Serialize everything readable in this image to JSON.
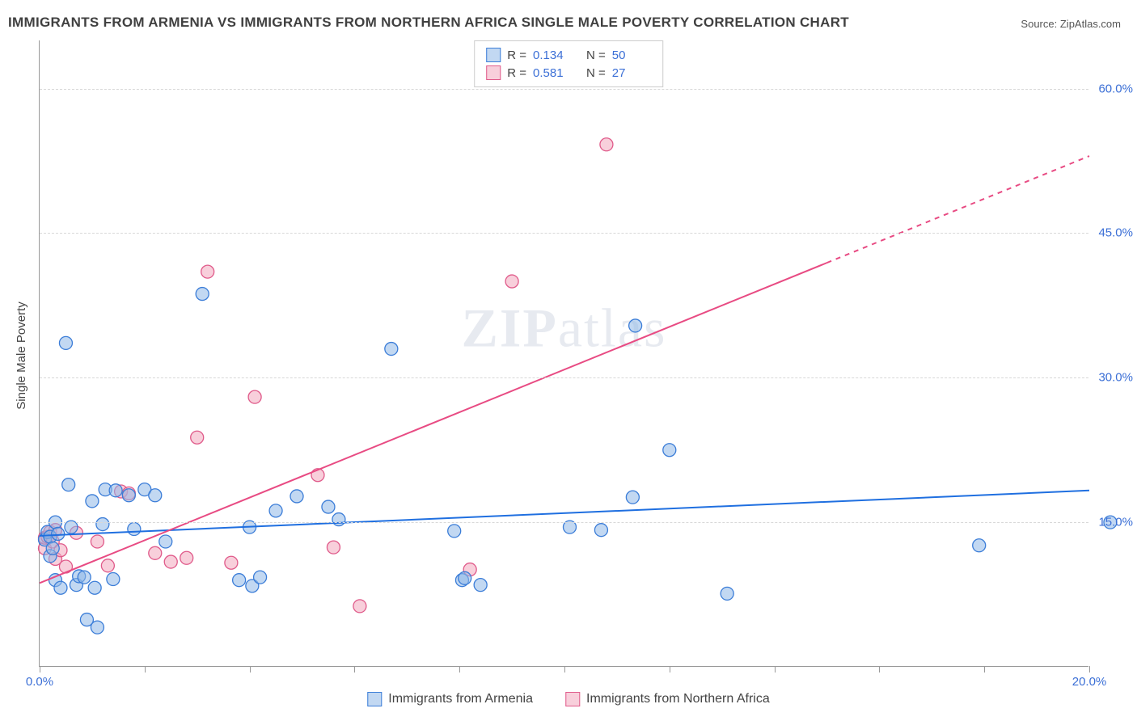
{
  "title": "IMMIGRANTS FROM ARMENIA VS IMMIGRANTS FROM NORTHERN AFRICA SINGLE MALE POVERTY CORRELATION CHART",
  "source_label": "Source:",
  "source_value": "ZipAtlas.com",
  "y_axis_label": "Single Male Poverty",
  "watermark": "ZIPatlas",
  "chart": {
    "type": "scatter",
    "xlim": [
      0,
      20
    ],
    "ylim": [
      0,
      65
    ],
    "x_ticks": [
      0,
      2,
      4,
      6,
      8,
      10,
      12,
      14,
      16,
      18,
      20
    ],
    "x_tick_labels": {
      "0": "0.0%",
      "20": "20.0%"
    },
    "y_ticks": [
      15,
      30,
      45,
      60
    ],
    "y_tick_labels": {
      "15": "15.0%",
      "30": "30.0%",
      "45": "45.0%",
      "60": "60.0%"
    },
    "grid_color": "#d8d8d8",
    "background_color": "#ffffff",
    "marker_radius": 8,
    "marker_stroke_width": 1.3,
    "line_width": 2,
    "series": [
      {
        "name": "Immigrants from Armenia",
        "label": "Immigrants from Armenia",
        "fill_color": "#8fb8e8",
        "fill_opacity": 0.55,
        "stroke_color": "#3b7dd8",
        "line_color": "#1f6fe0",
        "R": "0.134",
        "N": "50",
        "trend": {
          "x1": 0,
          "y1": 13.6,
          "x2": 20,
          "y2": 18.3,
          "dash_from_x": null
        },
        "points": [
          [
            0.1,
            13.2
          ],
          [
            0.15,
            14.0
          ],
          [
            0.2,
            11.5
          ],
          [
            0.2,
            13.5
          ],
          [
            0.25,
            12.3
          ],
          [
            0.3,
            9.0
          ],
          [
            0.3,
            15.0
          ],
          [
            0.35,
            13.8
          ],
          [
            0.4,
            8.2
          ],
          [
            0.5,
            33.6
          ],
          [
            0.55,
            18.9
          ],
          [
            0.6,
            14.5
          ],
          [
            0.7,
            8.5
          ],
          [
            0.75,
            9.4
          ],
          [
            0.85,
            9.3
          ],
          [
            0.9,
            4.9
          ],
          [
            1.0,
            17.2
          ],
          [
            1.05,
            8.2
          ],
          [
            1.1,
            4.1
          ],
          [
            1.2,
            14.8
          ],
          [
            1.25,
            18.4
          ],
          [
            1.4,
            9.1
          ],
          [
            1.45,
            18.3
          ],
          [
            1.7,
            17.8
          ],
          [
            1.8,
            14.3
          ],
          [
            2.0,
            18.4
          ],
          [
            2.2,
            17.8
          ],
          [
            2.4,
            13.0
          ],
          [
            3.1,
            38.7
          ],
          [
            3.8,
            9.0
          ],
          [
            4.0,
            14.5
          ],
          [
            4.05,
            8.4
          ],
          [
            4.2,
            9.3
          ],
          [
            4.5,
            16.2
          ],
          [
            4.9,
            17.7
          ],
          [
            5.5,
            16.6
          ],
          [
            5.7,
            15.3
          ],
          [
            6.7,
            33.0
          ],
          [
            7.9,
            14.1
          ],
          [
            8.05,
            9.0
          ],
          [
            8.1,
            9.2
          ],
          [
            8.4,
            8.5
          ],
          [
            10.1,
            14.5
          ],
          [
            10.7,
            14.2
          ],
          [
            11.3,
            17.6
          ],
          [
            11.35,
            35.4
          ],
          [
            12.0,
            22.5
          ],
          [
            13.1,
            7.6
          ],
          [
            17.9,
            12.6
          ],
          [
            20.4,
            15.0
          ]
        ]
      },
      {
        "name": "Immigrants from Northern Africa",
        "label": "Immigrants from Northern Africa",
        "fill_color": "#f3a7bd",
        "fill_opacity": 0.55,
        "stroke_color": "#e05a8a",
        "line_color": "#e84b83",
        "R": "0.581",
        "N": "27",
        "trend": {
          "x1": 0,
          "y1": 8.7,
          "x2": 20,
          "y2": 53.0,
          "dash_from_x": 15
        },
        "points": [
          [
            0.1,
            12.3
          ],
          [
            0.1,
            13.4
          ],
          [
            0.15,
            13.5
          ],
          [
            0.2,
            14.0
          ],
          [
            0.25,
            13.0
          ],
          [
            0.3,
            11.2
          ],
          [
            0.3,
            14.2
          ],
          [
            0.4,
            12.1
          ],
          [
            0.5,
            10.4
          ],
          [
            0.7,
            13.9
          ],
          [
            1.1,
            13.0
          ],
          [
            1.3,
            10.5
          ],
          [
            1.55,
            18.2
          ],
          [
            1.7,
            18.0
          ],
          [
            2.2,
            11.8
          ],
          [
            2.5,
            10.9
          ],
          [
            2.8,
            11.3
          ],
          [
            3.0,
            23.8
          ],
          [
            3.2,
            41.0
          ],
          [
            3.65,
            10.8
          ],
          [
            4.1,
            28.0
          ],
          [
            5.3,
            19.9
          ],
          [
            5.6,
            12.4
          ],
          [
            6.1,
            6.3
          ],
          [
            8.2,
            10.1
          ],
          [
            9.0,
            40.0
          ],
          [
            10.8,
            54.2
          ]
        ]
      }
    ]
  }
}
